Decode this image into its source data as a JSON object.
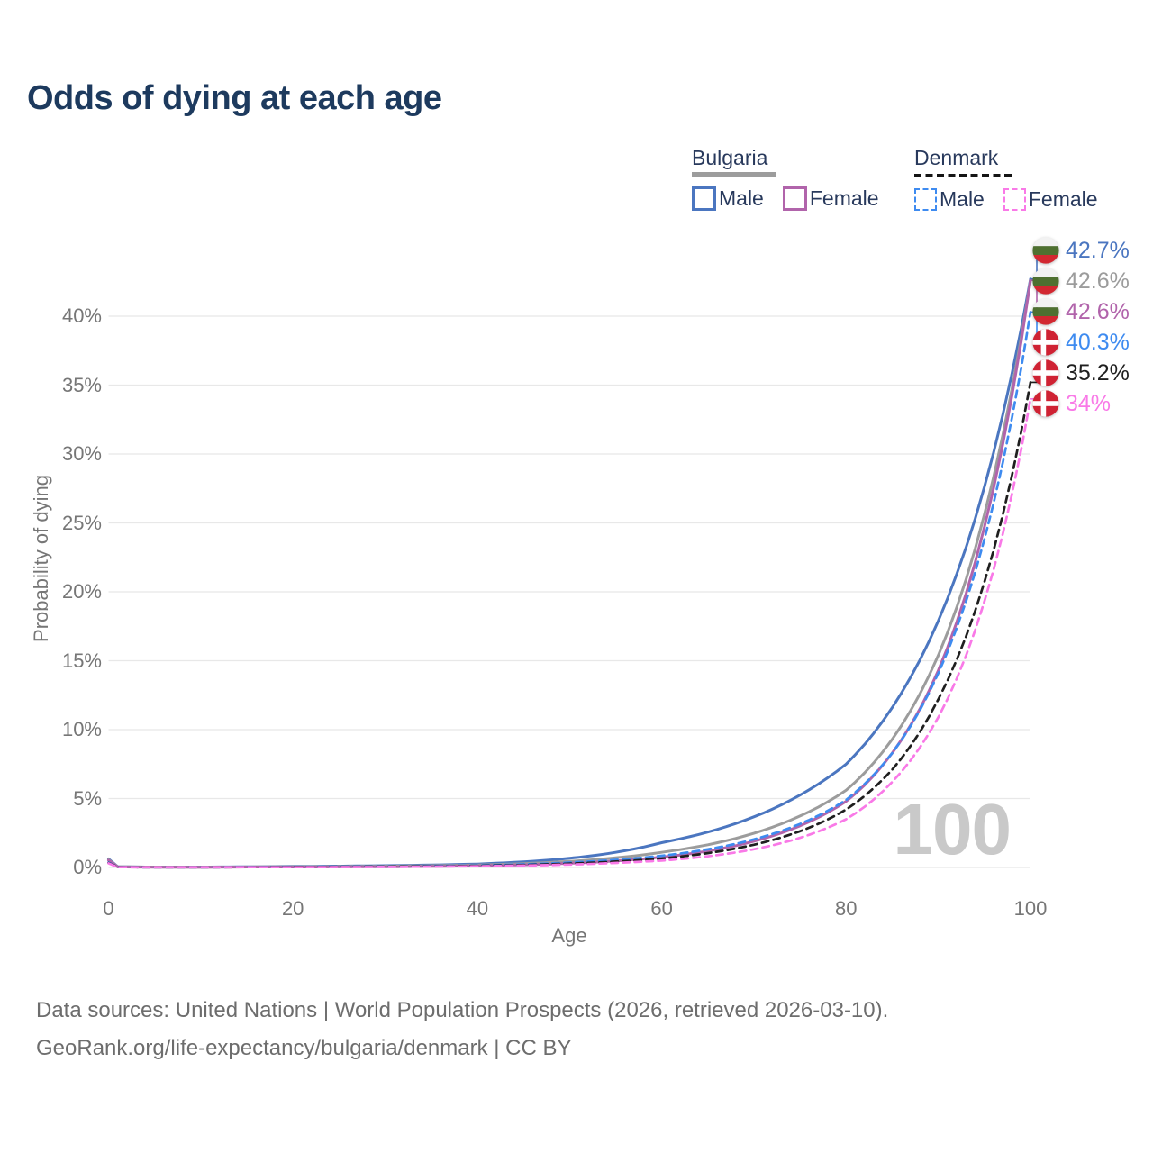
{
  "title": "Odds of dying at each age",
  "age_counter": "100",
  "colors": {
    "title_text": "#1d3a5e",
    "legend_text": "#28395c",
    "axis_text": "#767676",
    "gridline": "#e8e8e8",
    "watermark": "#c9c9c9",
    "footer_text": "#6d6d6d",
    "bulgaria_male": "#4b76c0",
    "bulgaria_total": "#9c9c9c",
    "bulgaria_female": "#b164ab",
    "denmark_male": "#3e8bf0",
    "denmark_total": "#1f1f1f",
    "denmark_female": "#f979e7",
    "flag_bulgaria_white": "#f2f2f2",
    "flag_bulgaria_green": "#4e7030",
    "flag_bulgaria_red": "#d22730",
    "flag_denmark_red": "#cf2233",
    "flag_denmark_cross": "#ffffff"
  },
  "legend": {
    "groups": [
      {
        "id": "bulgaria",
        "label": "Bulgaria",
        "line_style": "solid",
        "line_color": "#9c9c9c",
        "items": [
          {
            "id": "bulgaria-male",
            "label": "Male",
            "color": "#4b76c0",
            "dash": false
          },
          {
            "id": "bulgaria-female",
            "label": "Female",
            "color": "#b164ab",
            "dash": false
          }
        ]
      },
      {
        "id": "denmark",
        "label": "Denmark",
        "line_style": "dashed",
        "line_color": "#151515",
        "items": [
          {
            "id": "denmark-male",
            "label": "Male",
            "color": "#3e8bf0",
            "dash": true
          },
          {
            "id": "denmark-female",
            "label": "Female",
            "color": "#f979e7",
            "dash": true
          }
        ]
      }
    ]
  },
  "axes": {
    "y": {
      "label": "Probability of dying",
      "tick_values": [
        0,
        5,
        10,
        15,
        20,
        25,
        30,
        35,
        40
      ],
      "tick_labels": [
        "0%",
        "5%",
        "10%",
        "15%",
        "20%",
        "25%",
        "30%",
        "35%",
        "40%"
      ]
    },
    "x": {
      "label": "Age",
      "tick_values": [
        0,
        20,
        40,
        60,
        80,
        100
      ],
      "tick_labels": [
        "0",
        "20",
        "40",
        "60",
        "80",
        "100"
      ]
    }
  },
  "end_labels": [
    {
      "series": "bulgaria-male",
      "flag": "bulgaria",
      "text": "42.7%",
      "value": 42.7,
      "color": "#4b76c0"
    },
    {
      "series": "bulgaria-total",
      "flag": "bulgaria",
      "text": "42.6%",
      "value": 42.6,
      "color": "#9c9c9c"
    },
    {
      "series": "bulgaria-female",
      "flag": "bulgaria",
      "text": "42.6%",
      "value": 42.6,
      "color": "#b164ab"
    },
    {
      "series": "denmark-male",
      "flag": "denmark",
      "text": "40.3%",
      "value": 40.3,
      "color": "#3e8bf0"
    },
    {
      "series": "denmark-total",
      "flag": "denmark",
      "text": "35.2%",
      "value": 35.2,
      "color": "#1f1f1f"
    },
    {
      "series": "denmark-female",
      "flag": "denmark",
      "text": "34%",
      "value": 34.0,
      "color": "#f979e7"
    }
  ],
  "chart_data": {
    "type": "line",
    "title": "Odds of dying at each age",
    "xlabel": "Age",
    "ylabel": "Probability of dying",
    "xlim": [
      0,
      100
    ],
    "ylim": [
      0,
      43
    ],
    "y_unit": "%",
    "grid": "horizontal",
    "legend_position": "top-right",
    "x": [
      0,
      1,
      5,
      10,
      15,
      20,
      25,
      30,
      35,
      40,
      45,
      50,
      55,
      60,
      65,
      70,
      75,
      80,
      85,
      90,
      95,
      100
    ],
    "series": [
      {
        "name": "Bulgaria Male",
        "country": "Bulgaria",
        "sex": "male",
        "style": "solid",
        "color": "#4b76c0",
        "end_value_pct": 42.7,
        "values": [
          0.62,
          0.06,
          0.03,
          0.03,
          0.05,
          0.08,
          0.1,
          0.13,
          0.18,
          0.25,
          0.41,
          0.67,
          1.1,
          1.8,
          2.57,
          3.67,
          5.25,
          7.5,
          11.6,
          17.9,
          27.6,
          42.7
        ]
      },
      {
        "name": "Bulgaria Total",
        "country": "Bulgaria",
        "sex": "total",
        "style": "solid",
        "color": "#9c9c9c",
        "end_value_pct": 42.6,
        "values": [
          0.56,
          0.05,
          0.03,
          0.02,
          0.04,
          0.06,
          0.07,
          0.09,
          0.13,
          0.18,
          0.28,
          0.44,
          0.7,
          1.1,
          1.65,
          2.48,
          3.73,
          5.6,
          9.3,
          15.4,
          25.6,
          42.6
        ]
      },
      {
        "name": "Bulgaria Female",
        "country": "Bulgaria",
        "sex": "female",
        "style": "solid",
        "color": "#b164ab",
        "end_value_pct": 42.6,
        "values": [
          0.52,
          0.04,
          0.02,
          0.02,
          0.03,
          0.03,
          0.04,
          0.05,
          0.08,
          0.12,
          0.19,
          0.3,
          0.47,
          0.75,
          1.19,
          1.9,
          3.02,
          4.8,
          8.3,
          14.3,
          24.7,
          42.6
        ]
      },
      {
        "name": "Denmark Male",
        "country": "Denmark",
        "sex": "male",
        "style": "dashed",
        "color": "#3e8bf0",
        "end_value_pct": 40.3,
        "values": [
          0.36,
          0.03,
          0.01,
          0.01,
          0.03,
          0.05,
          0.06,
          0.07,
          0.1,
          0.15,
          0.23,
          0.36,
          0.55,
          0.85,
          1.32,
          2.04,
          3.16,
          4.9,
          8.3,
          14.1,
          23.8,
          40.3
        ]
      },
      {
        "name": "Denmark Total",
        "country": "Denmark",
        "sex": "total",
        "style": "dashed",
        "color": "#1f1f1f",
        "end_value_pct": 35.2,
        "values": [
          0.33,
          0.03,
          0.01,
          0.01,
          0.02,
          0.04,
          0.05,
          0.06,
          0.08,
          0.12,
          0.18,
          0.28,
          0.43,
          0.65,
          1.04,
          1.65,
          2.63,
          4.2,
          7.1,
          12.2,
          20.7,
          35.2
        ]
      },
      {
        "name": "Denmark Female",
        "country": "Denmark",
        "sex": "female",
        "style": "dashed",
        "color": "#f979e7",
        "end_value_pct": 34.0,
        "values": [
          0.3,
          0.02,
          0.01,
          0.01,
          0.02,
          0.02,
          0.03,
          0.04,
          0.06,
          0.09,
          0.14,
          0.21,
          0.33,
          0.5,
          0.81,
          1.32,
          2.15,
          3.5,
          6.2,
          10.9,
          19.3,
          34.0
        ]
      }
    ]
  },
  "footer": {
    "line1": "Data sources: United Nations | World Population Prospects (2026, retrieved 2026-03-10).",
    "line2": "GeoRank.org/life-expectancy/bulgaria/denmark | CC BY"
  }
}
